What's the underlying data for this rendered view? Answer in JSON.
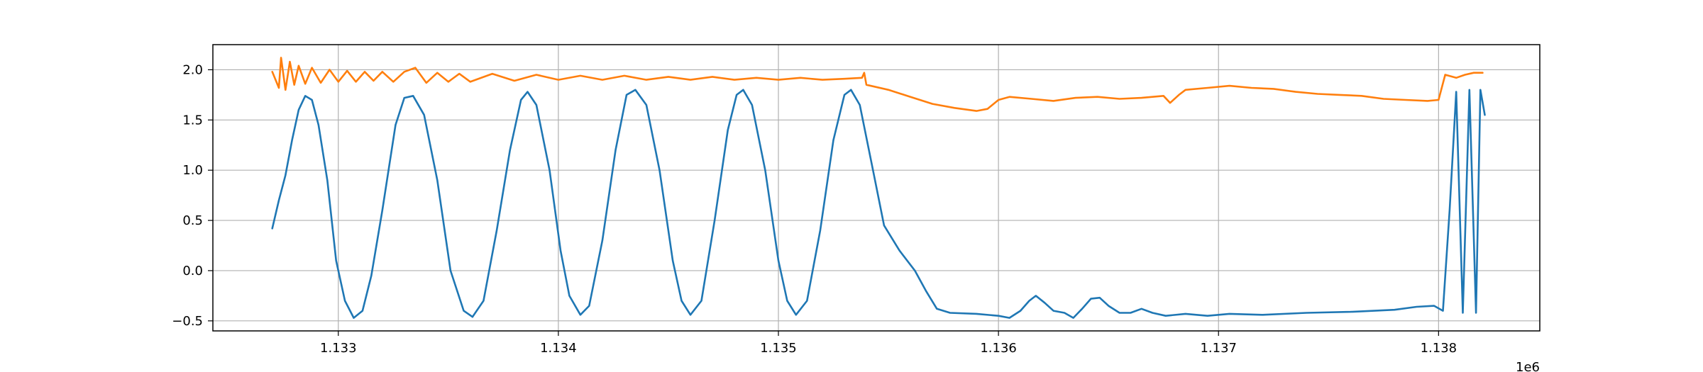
{
  "chart_data": {
    "type": "line",
    "title": "",
    "xlabel": "",
    "ylabel": "",
    "x_offset_label": "1e6",
    "xlim": [
      1132.43,
      1138.46
    ],
    "ylim": [
      -0.6,
      2.25
    ],
    "grid": true,
    "xticks": [
      {
        "value": 1133,
        "label": "1.133"
      },
      {
        "value": 1134,
        "label": "1.134"
      },
      {
        "value": 1135,
        "label": "1.135"
      },
      {
        "value": 1136,
        "label": "1.136"
      },
      {
        "value": 1137,
        "label": "1.137"
      },
      {
        "value": 1138,
        "label": "1.138"
      }
    ],
    "yticks": [
      {
        "value": -0.5,
        "label": "−0.5"
      },
      {
        "value": 0.0,
        "label": "0.0"
      },
      {
        "value": 0.5,
        "label": "0.5"
      },
      {
        "value": 1.0,
        "label": "1.0"
      },
      {
        "value": 1.5,
        "label": "1.5"
      },
      {
        "value": 2.0,
        "label": "2.0"
      }
    ],
    "series": [
      {
        "color": "#1f77b4",
        "points": [
          [
            1132.7,
            0.42
          ],
          [
            1132.73,
            0.7
          ],
          [
            1132.76,
            0.95
          ],
          [
            1132.79,
            1.3
          ],
          [
            1132.82,
            1.6
          ],
          [
            1132.85,
            1.74
          ],
          [
            1132.88,
            1.7
          ],
          [
            1132.91,
            1.45
          ],
          [
            1132.95,
            0.9
          ],
          [
            1132.99,
            0.1
          ],
          [
            1133.03,
            -0.3
          ],
          [
            1133.07,
            -0.47
          ],
          [
            1133.11,
            -0.4
          ],
          [
            1133.15,
            -0.05
          ],
          [
            1133.2,
            0.6
          ],
          [
            1133.26,
            1.45
          ],
          [
            1133.3,
            1.72
          ],
          [
            1133.34,
            1.74
          ],
          [
            1133.39,
            1.55
          ],
          [
            1133.45,
            0.9
          ],
          [
            1133.51,
            0.0
          ],
          [
            1133.57,
            -0.4
          ],
          [
            1133.61,
            -0.46
          ],
          [
            1133.66,
            -0.3
          ],
          [
            1133.72,
            0.4
          ],
          [
            1133.78,
            1.2
          ],
          [
            1133.83,
            1.7
          ],
          [
            1133.86,
            1.78
          ],
          [
            1133.9,
            1.65
          ],
          [
            1133.96,
            1.0
          ],
          [
            1134.01,
            0.2
          ],
          [
            1134.05,
            -0.25
          ],
          [
            1134.1,
            -0.44
          ],
          [
            1134.14,
            -0.35
          ],
          [
            1134.2,
            0.3
          ],
          [
            1134.26,
            1.2
          ],
          [
            1134.31,
            1.75
          ],
          [
            1134.35,
            1.8
          ],
          [
            1134.4,
            1.65
          ],
          [
            1134.46,
            1.0
          ],
          [
            1134.52,
            0.1
          ],
          [
            1134.56,
            -0.3
          ],
          [
            1134.6,
            -0.44
          ],
          [
            1134.65,
            -0.3
          ],
          [
            1134.71,
            0.5
          ],
          [
            1134.77,
            1.4
          ],
          [
            1134.81,
            1.75
          ],
          [
            1134.84,
            1.8
          ],
          [
            1134.88,
            1.65
          ],
          [
            1134.94,
            1.0
          ],
          [
            1135.0,
            0.1
          ],
          [
            1135.04,
            -0.3
          ],
          [
            1135.08,
            -0.44
          ],
          [
            1135.13,
            -0.3
          ],
          [
            1135.19,
            0.4
          ],
          [
            1135.25,
            1.3
          ],
          [
            1135.3,
            1.75
          ],
          [
            1135.33,
            1.8
          ],
          [
            1135.37,
            1.65
          ],
          [
            1135.43,
            1.0
          ],
          [
            1135.48,
            0.45
          ],
          [
            1135.55,
            0.2
          ],
          [
            1135.62,
            0.0
          ],
          [
            1135.67,
            -0.2
          ],
          [
            1135.72,
            -0.38
          ],
          [
            1135.78,
            -0.42
          ],
          [
            1135.9,
            -0.43
          ],
          [
            1136.0,
            -0.45
          ],
          [
            1136.05,
            -0.47
          ],
          [
            1136.1,
            -0.4
          ],
          [
            1136.14,
            -0.3
          ],
          [
            1136.17,
            -0.25
          ],
          [
            1136.21,
            -0.32
          ],
          [
            1136.25,
            -0.4
          ],
          [
            1136.3,
            -0.42
          ],
          [
            1136.34,
            -0.47
          ],
          [
            1136.38,
            -0.38
          ],
          [
            1136.42,
            -0.28
          ],
          [
            1136.46,
            -0.27
          ],
          [
            1136.5,
            -0.35
          ],
          [
            1136.55,
            -0.42
          ],
          [
            1136.6,
            -0.42
          ],
          [
            1136.65,
            -0.38
          ],
          [
            1136.7,
            -0.42
          ],
          [
            1136.76,
            -0.45
          ],
          [
            1136.85,
            -0.43
          ],
          [
            1136.95,
            -0.45
          ],
          [
            1137.05,
            -0.43
          ],
          [
            1137.2,
            -0.44
          ],
          [
            1137.4,
            -0.42
          ],
          [
            1137.6,
            -0.41
          ],
          [
            1137.8,
            -0.39
          ],
          [
            1137.9,
            -0.36
          ],
          [
            1137.98,
            -0.35
          ],
          [
            1138.02,
            -0.4
          ],
          [
            1138.05,
            0.6
          ],
          [
            1138.08,
            1.78
          ],
          [
            1138.11,
            -0.42
          ],
          [
            1138.14,
            1.8
          ],
          [
            1138.17,
            -0.42
          ],
          [
            1138.19,
            1.8
          ],
          [
            1138.21,
            1.55
          ]
        ]
      },
      {
        "color": "#ff7f0e",
        "points": [
          [
            1132.7,
            1.98
          ],
          [
            1132.73,
            1.82
          ],
          [
            1132.74,
            2.12
          ],
          [
            1132.76,
            1.8
          ],
          [
            1132.78,
            2.08
          ],
          [
            1132.8,
            1.85
          ],
          [
            1132.82,
            2.04
          ],
          [
            1132.85,
            1.86
          ],
          [
            1132.88,
            2.02
          ],
          [
            1132.92,
            1.87
          ],
          [
            1132.96,
            2.0
          ],
          [
            1133.0,
            1.88
          ],
          [
            1133.04,
            1.99
          ],
          [
            1133.08,
            1.88
          ],
          [
            1133.12,
            1.98
          ],
          [
            1133.16,
            1.89
          ],
          [
            1133.2,
            1.98
          ],
          [
            1133.25,
            1.88
          ],
          [
            1133.3,
            1.98
          ],
          [
            1133.35,
            2.02
          ],
          [
            1133.4,
            1.87
          ],
          [
            1133.45,
            1.97
          ],
          [
            1133.5,
            1.88
          ],
          [
            1133.55,
            1.96
          ],
          [
            1133.6,
            1.88
          ],
          [
            1133.7,
            1.96
          ],
          [
            1133.8,
            1.89
          ],
          [
            1133.9,
            1.95
          ],
          [
            1134.0,
            1.9
          ],
          [
            1134.1,
            1.94
          ],
          [
            1134.2,
            1.9
          ],
          [
            1134.3,
            1.94
          ],
          [
            1134.4,
            1.9
          ],
          [
            1134.5,
            1.93
          ],
          [
            1134.6,
            1.9
          ],
          [
            1134.7,
            1.93
          ],
          [
            1134.8,
            1.9
          ],
          [
            1134.9,
            1.92
          ],
          [
            1135.0,
            1.9
          ],
          [
            1135.1,
            1.92
          ],
          [
            1135.2,
            1.9
          ],
          [
            1135.3,
            1.91
          ],
          [
            1135.38,
            1.92
          ],
          [
            1135.39,
            1.97
          ],
          [
            1135.4,
            1.85
          ],
          [
            1135.5,
            1.8
          ],
          [
            1135.6,
            1.73
          ],
          [
            1135.7,
            1.66
          ],
          [
            1135.8,
            1.62
          ],
          [
            1135.9,
            1.59
          ],
          [
            1135.95,
            1.61
          ],
          [
            1136.0,
            1.7
          ],
          [
            1136.05,
            1.73
          ],
          [
            1136.15,
            1.71
          ],
          [
            1136.25,
            1.69
          ],
          [
            1136.35,
            1.72
          ],
          [
            1136.45,
            1.73
          ],
          [
            1136.55,
            1.71
          ],
          [
            1136.65,
            1.72
          ],
          [
            1136.75,
            1.74
          ],
          [
            1136.78,
            1.67
          ],
          [
            1136.82,
            1.75
          ],
          [
            1136.85,
            1.8
          ],
          [
            1136.95,
            1.82
          ],
          [
            1137.05,
            1.84
          ],
          [
            1137.15,
            1.82
          ],
          [
            1137.25,
            1.81
          ],
          [
            1137.35,
            1.78
          ],
          [
            1137.45,
            1.76
          ],
          [
            1137.55,
            1.75
          ],
          [
            1137.65,
            1.74
          ],
          [
            1137.75,
            1.71
          ],
          [
            1137.85,
            1.7
          ],
          [
            1137.95,
            1.69
          ],
          [
            1138.0,
            1.7
          ],
          [
            1138.03,
            1.95
          ],
          [
            1138.08,
            1.92
          ],
          [
            1138.12,
            1.95
          ],
          [
            1138.16,
            1.97
          ],
          [
            1138.2,
            1.97
          ]
        ]
      }
    ]
  }
}
